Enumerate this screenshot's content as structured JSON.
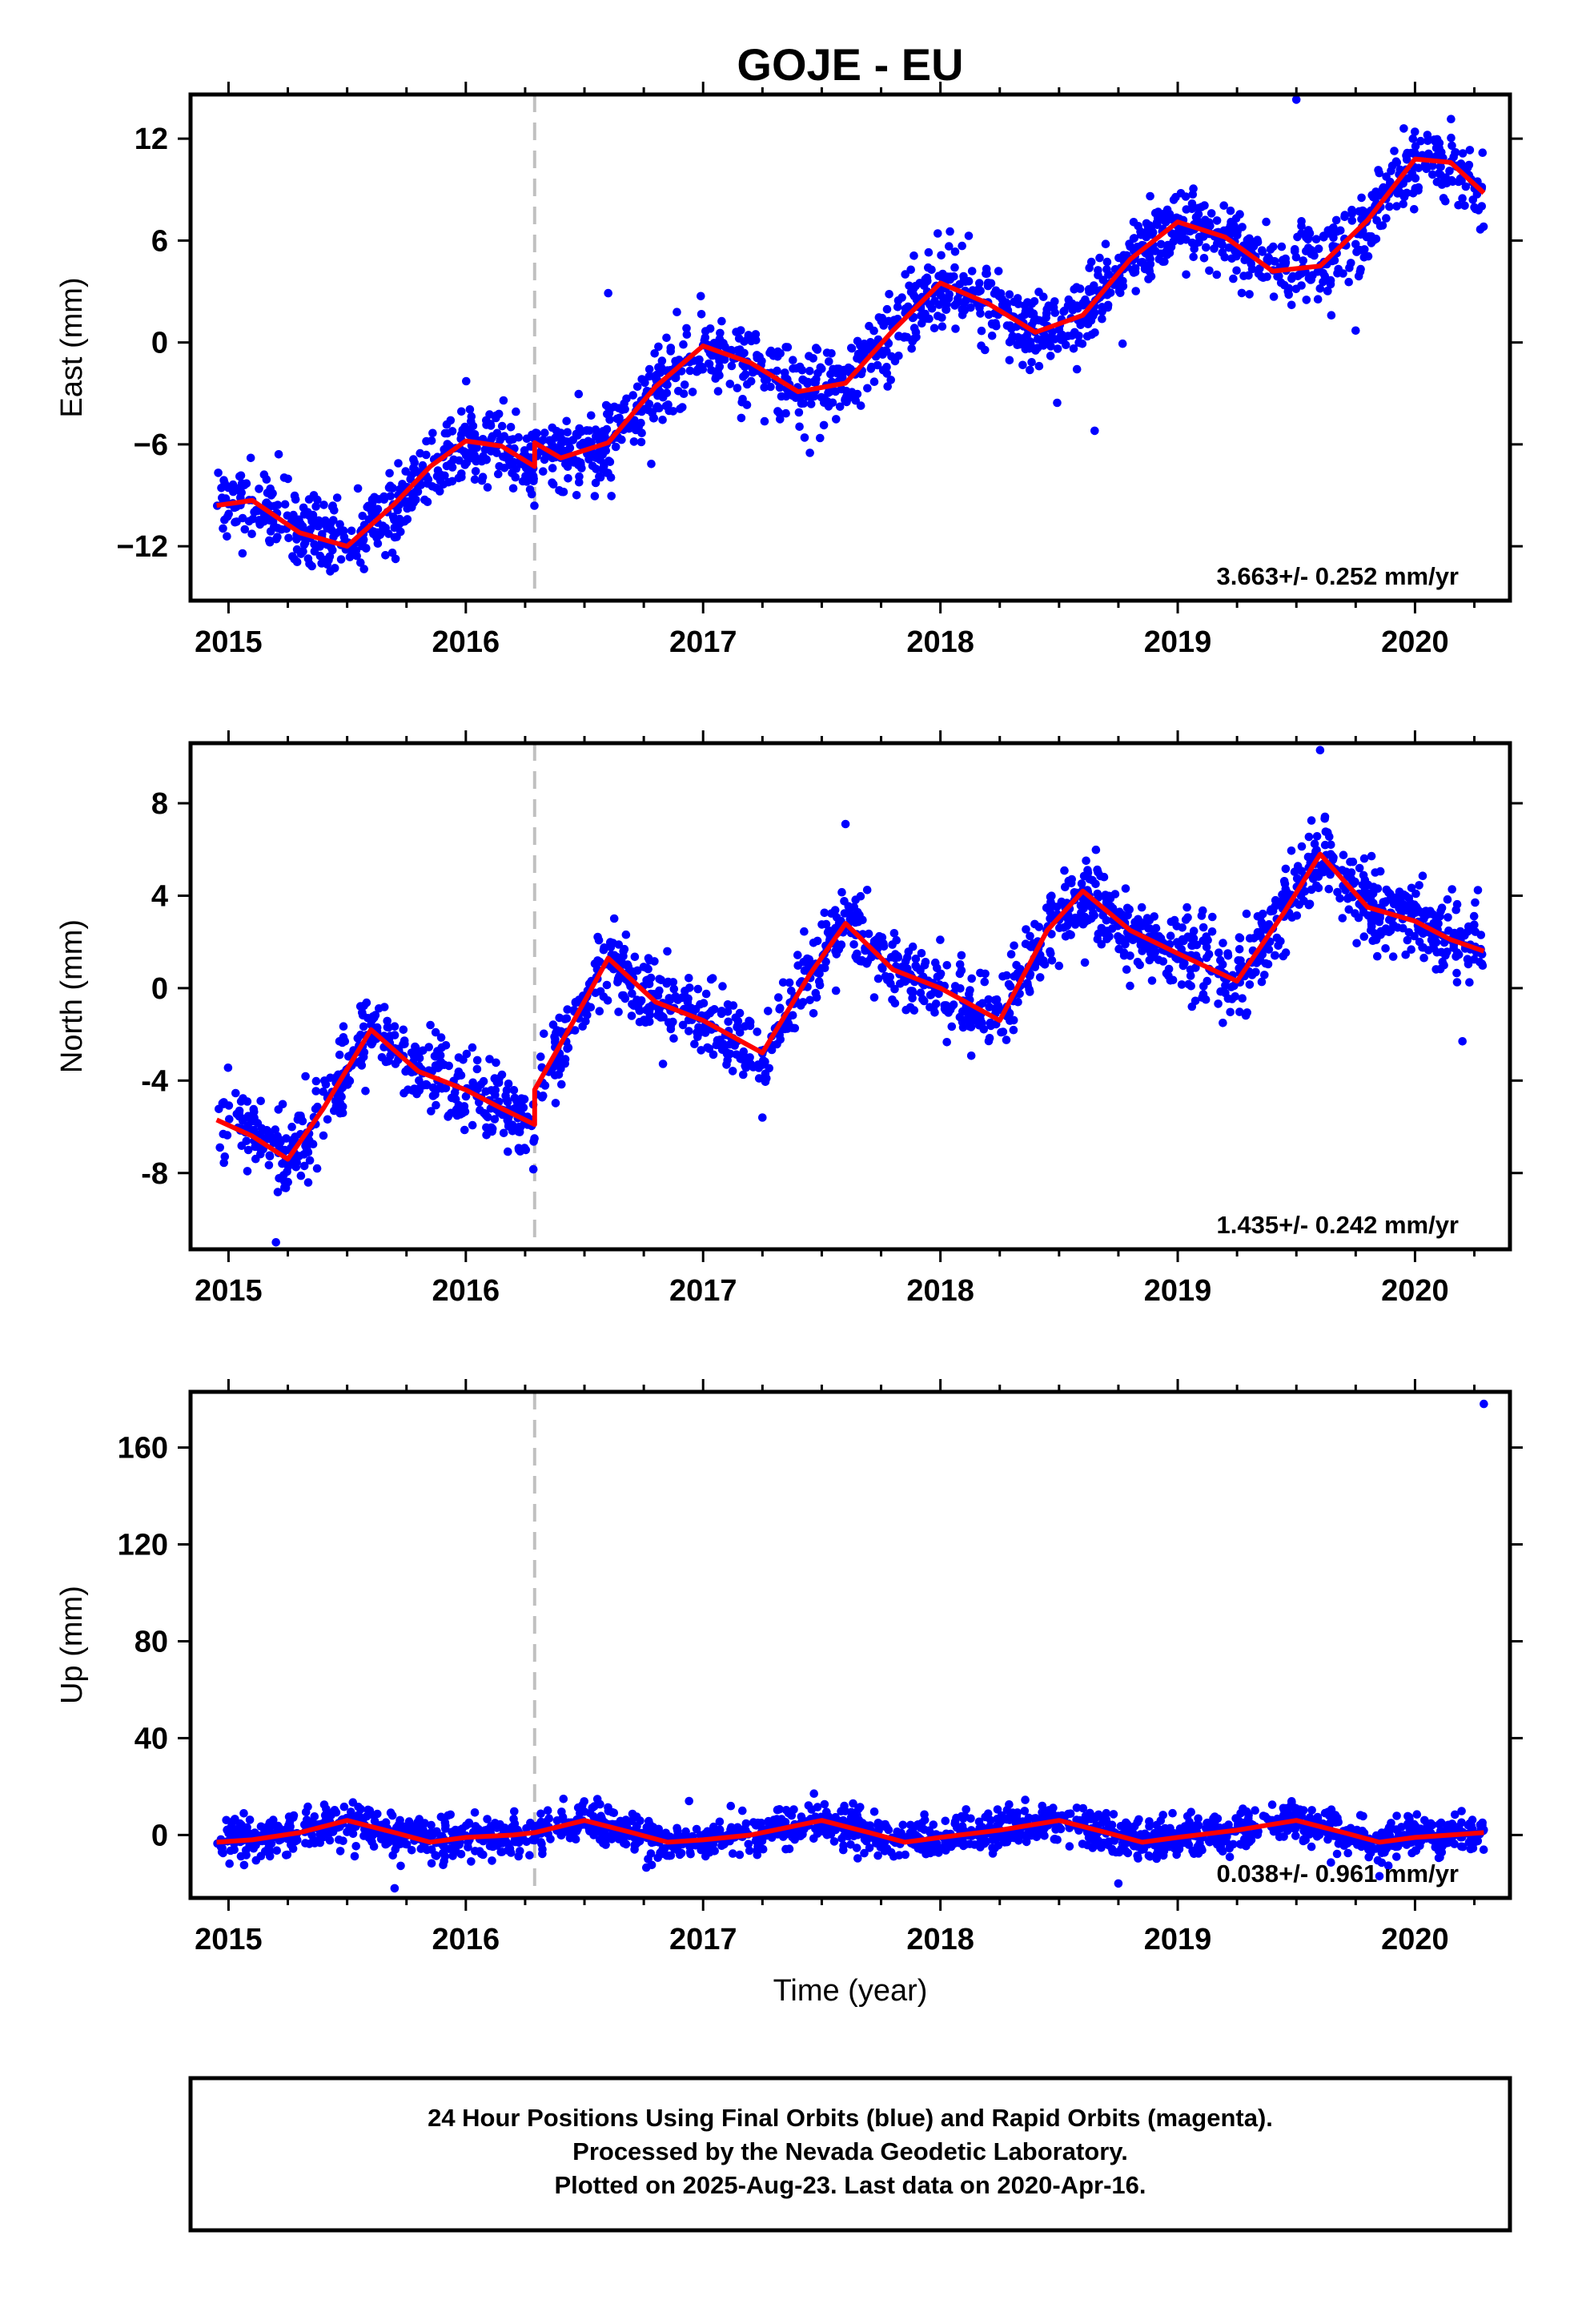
{
  "title": "GOJE - EU",
  "x_axis_label": "Time (year)",
  "footer": {
    "line1": "24 Hour Positions Using Final Orbits (blue) and Rapid Orbits (magenta).",
    "line2": "Processed by the Nevada Geodetic Laboratory.",
    "line3": "Plotted on 2025-Aug-23. Last data on 2020-Apr-16."
  },
  "colors": {
    "points": "#0000ff",
    "model": "#ff0000",
    "break": "#c0c0c0",
    "frame": "#000000"
  },
  "chart_data": [
    {
      "type": "scatter",
      "ylabel": "East (mm)",
      "xlim": [
        2014.84,
        2020.4
      ],
      "ylim": [
        -15.2,
        14.6
      ],
      "xticks": [
        2015,
        2016,
        2017,
        2018,
        2019,
        2020
      ],
      "xtick_labels": [
        "2015",
        "2016",
        "2017",
        "2018",
        "2019",
        "2020"
      ],
      "yticks": [
        -12,
        -6,
        0,
        6,
        12
      ],
      "ytick_labels": [
        "−12",
        "−6",
        "0",
        "6",
        "12"
      ],
      "rate_text": "3.663+/- 0.252 mm/yr",
      "break_x": 2016.29,
      "model": {
        "x": [
          2014.95,
          2015.1,
          2015.3,
          2015.5,
          2015.7,
          2015.85,
          2016.0,
          2016.15,
          2016.29,
          2016.29,
          2016.4,
          2016.6,
          2016.8,
          2017.0,
          2017.2,
          2017.4,
          2017.6,
          2017.8,
          2018.0,
          2018.2,
          2018.4,
          2018.6,
          2018.8,
          2019.0,
          2019.2,
          2019.4,
          2019.6,
          2019.8,
          2020.0,
          2020.15,
          2020.29
        ],
        "y": [
          -9.6,
          -9.3,
          -11.2,
          -12.0,
          -9.5,
          -7.3,
          -5.8,
          -6.1,
          -7.3,
          -5.9,
          -6.8,
          -5.9,
          -2.6,
          -0.2,
          -1.2,
          -2.9,
          -2.4,
          0.7,
          3.5,
          2.3,
          0.6,
          1.6,
          4.9,
          7.1,
          6.2,
          4.2,
          4.5,
          7.2,
          10.8,
          10.6,
          8.8
        ]
      },
      "scatter": {
        "count": 1850,
        "noise": 1.1,
        "outliers": [
          [
            2019.5,
            14.3
          ],
          [
            2018.65,
            -5.2
          ],
          [
            2017.45,
            -6.5
          ],
          [
            2016.6,
            2.9
          ],
          [
            2019.75,
            0.7
          ]
        ]
      }
    },
    {
      "type": "scatter",
      "ylabel": "North (mm)",
      "xlim": [
        2014.84,
        2020.4
      ],
      "ylim": [
        -11.3,
        10.6
      ],
      "xticks": [
        2015,
        2016,
        2017,
        2018,
        2019,
        2020
      ],
      "xtick_labels": [
        "2015",
        "2016",
        "2017",
        "2018",
        "2019",
        "2020"
      ],
      "yticks": [
        -8,
        -4,
        0,
        4,
        8
      ],
      "ytick_labels": [
        "-8",
        "-4",
        "0",
        "4",
        "8"
      ],
      "rate_text": "1.435+/- 0.242 mm/yr",
      "break_x": 2016.29,
      "model": {
        "x": [
          2014.95,
          2015.1,
          2015.25,
          2015.4,
          2015.6,
          2015.8,
          2016.0,
          2016.15,
          2016.29,
          2016.29,
          2016.45,
          2016.6,
          2016.8,
          2017.0,
          2017.25,
          2017.45,
          2017.6,
          2017.8,
          2018.0,
          2018.25,
          2018.45,
          2018.6,
          2018.8,
          2019.0,
          2019.25,
          2019.45,
          2019.6,
          2019.8,
          2020.0,
          2020.15,
          2020.29
        ],
        "y": [
          -5.7,
          -6.4,
          -7.4,
          -5.2,
          -1.8,
          -3.6,
          -4.4,
          -5.2,
          -5.9,
          -4.4,
          -1.5,
          1.3,
          -0.6,
          -1.4,
          -2.8,
          0.6,
          2.8,
          0.8,
          0.0,
          -1.4,
          2.5,
          4.2,
          2.5,
          1.5,
          0.3,
          3.3,
          5.8,
          3.5,
          2.9,
          2.1,
          1.6
        ]
      },
      "scatter": {
        "count": 1850,
        "noise": 0.85,
        "outliers": [
          [
            2019.6,
            10.3
          ],
          [
            2015.2,
            -11.0
          ],
          [
            2017.6,
            7.1
          ],
          [
            2020.2,
            -2.3
          ],
          [
            2017.25,
            -5.6
          ]
        ]
      }
    },
    {
      "type": "scatter",
      "ylabel": "Up (mm)",
      "xlim": [
        2014.84,
        2020.4
      ],
      "ylim": [
        -26,
        183
      ],
      "xticks": [
        2015,
        2016,
        2017,
        2018,
        2019,
        2020
      ],
      "xtick_labels": [
        "2015",
        "2016",
        "2017",
        "2018",
        "2019",
        "2020"
      ],
      "yticks": [
        0,
        40,
        80,
        120,
        160
      ],
      "ytick_labels": [
        "0",
        "40",
        "80",
        "120",
        "160"
      ],
      "rate_text": "0.038+/- 0.961 mm/yr",
      "break_x": 2016.29,
      "model": {
        "x": [
          2014.95,
          2015.1,
          2015.3,
          2015.5,
          2015.7,
          2015.85,
          2016.0,
          2016.2,
          2016.29,
          2016.5,
          2016.7,
          2016.85,
          2017.0,
          2017.2,
          2017.5,
          2017.7,
          2017.85,
          2018.0,
          2018.25,
          2018.5,
          2018.7,
          2018.85,
          2019.0,
          2019.25,
          2019.5,
          2019.7,
          2019.85,
          2020.0,
          2020.15,
          2020.29
        ],
        "y": [
          -3,
          -2,
          1,
          6,
          1,
          -3,
          -1,
          0,
          1,
          6,
          1,
          -3,
          -2,
          0,
          6,
          1,
          -3,
          -1,
          2,
          6,
          1,
          -3,
          -1,
          2,
          6,
          1,
          -3,
          -1,
          0,
          1
        ]
      },
      "scatter": {
        "count": 1850,
        "noise": 4.0,
        "outliers": [
          [
            2020.29,
            178
          ],
          [
            2015.7,
            -22
          ],
          [
            2018.75,
            -20
          ],
          [
            2019.85,
            -17
          ]
        ]
      }
    }
  ]
}
